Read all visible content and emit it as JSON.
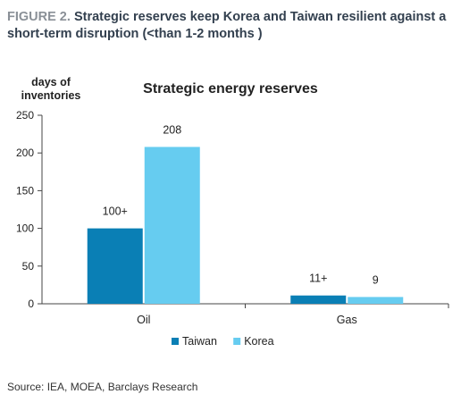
{
  "figure": {
    "label": "FIGURE 2.",
    "title": "Strategic reserves keep Korea and Taiwan resilient against a short-term disruption (<than 1-2 months )",
    "source": "Source: IEA, MOEA, Barclays Research"
  },
  "chart_data": {
    "type": "bar",
    "title": "Strategic energy reserves",
    "ylabel_lines": [
      "days of",
      "inventories"
    ],
    "xlabel": "",
    "categories": [
      "Oil",
      "Gas"
    ],
    "series": [
      {
        "name": "Taiwan",
        "values": [
          100,
          11
        ],
        "labels": [
          "100+",
          "11+"
        ],
        "color": "#0a7fb5"
      },
      {
        "name": "Korea",
        "values": [
          208,
          9
        ],
        "labels": [
          "208",
          "9"
        ],
        "color": "#66ccf0"
      }
    ],
    "ylim": [
      0,
      250
    ],
    "yticks": [
      0,
      50,
      100,
      150,
      200,
      250
    ],
    "grid": false,
    "legend_position": "bottom-center"
  }
}
